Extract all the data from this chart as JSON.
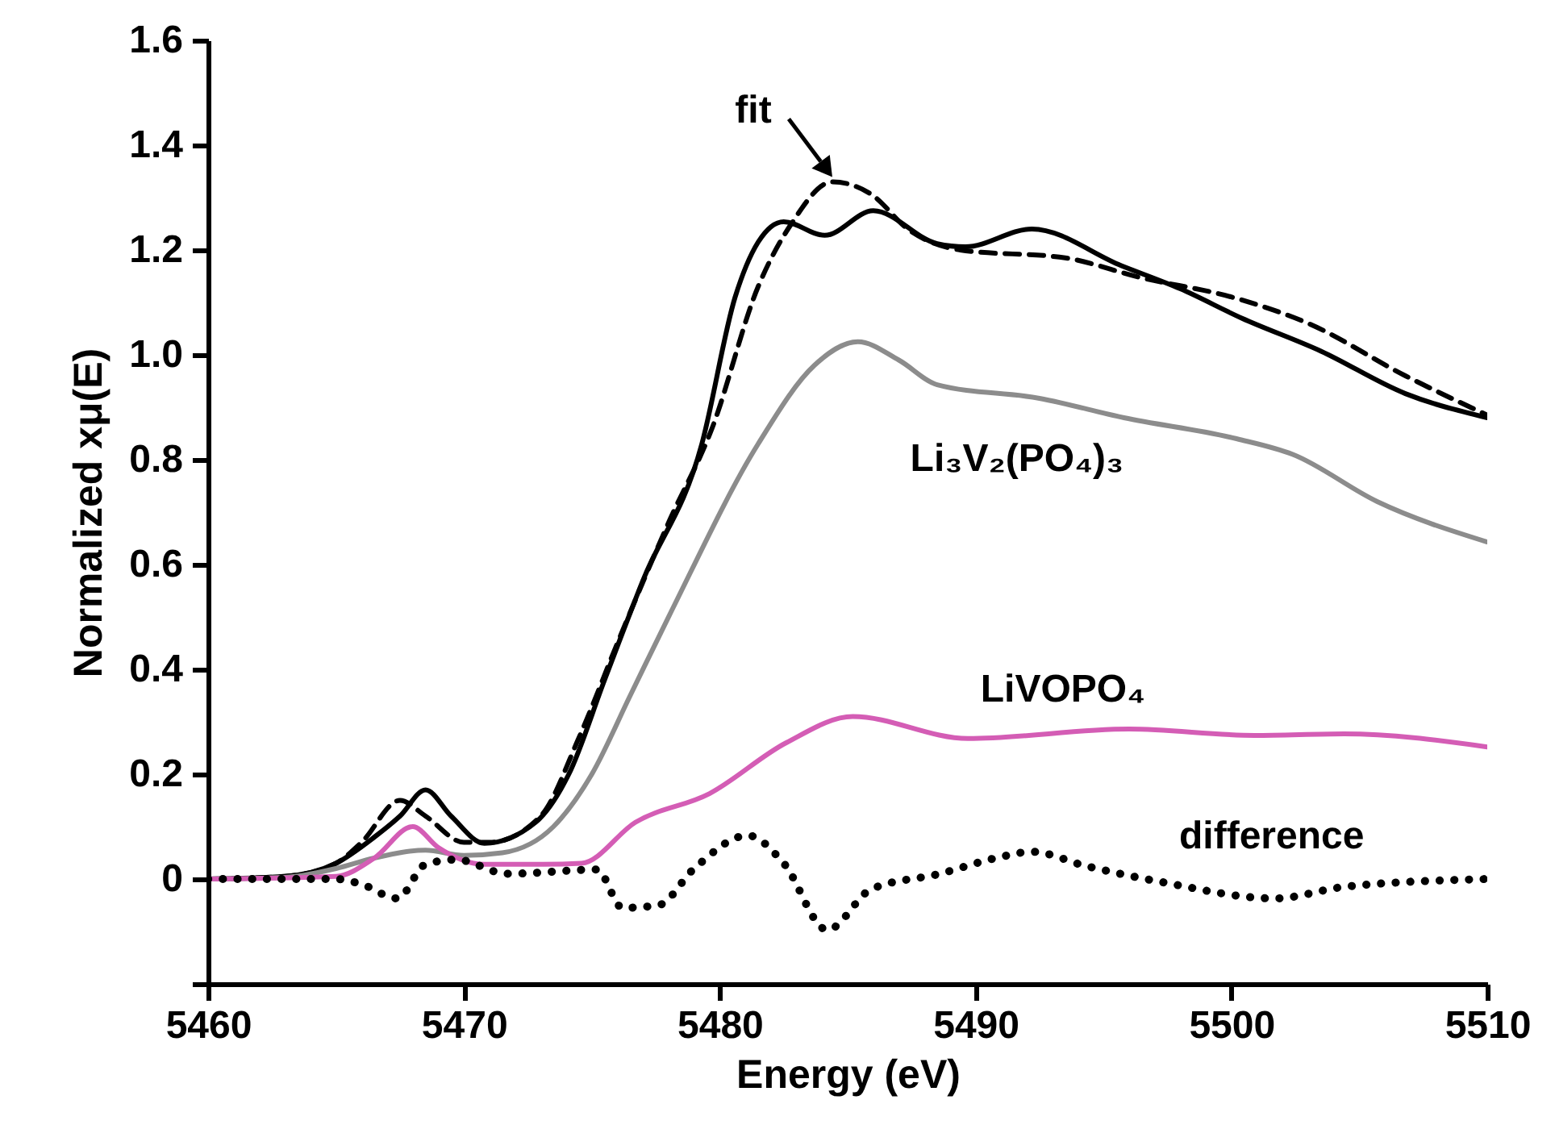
{
  "chart_data": {
    "type": "line",
    "xlabel": "Energy (eV)",
    "ylabel": "Normalized xμ(E)",
    "xlim": [
      5460,
      5510
    ],
    "ylim": [
      -0.2,
      1.6
    ],
    "xticks": [
      5460,
      5470,
      5480,
      5490,
      5500,
      5510
    ],
    "yticks": [
      {
        "value": -0.2,
        "label": null
      },
      0,
      0.2,
      0.4,
      0.6,
      0.8,
      {
        "value": 1.0,
        "label": "1.0"
      },
      1.2,
      1.4,
      1.6
    ],
    "series": [
      {
        "color": "#000000",
        "line_style": "solid",
        "x": [
          5460,
          5463,
          5465,
          5466.5,
          5467.5,
          5468.5,
          5469.5,
          5470.8,
          5472.8,
          5474.1,
          5475.5,
          5477,
          5479.3,
          5480.6,
          5481.5,
          5482.5,
          5484.1,
          5486,
          5488.5,
          5489.6,
          5492.2,
          5495.7,
          5498,
          5500.4,
          5503.5,
          5506.8,
          5510
        ],
        "values": [
          0,
          0.005,
          0.03,
          0.08,
          0.12,
          0.17,
          0.12,
          0.068,
          0.108,
          0.2,
          0.38,
          0.57,
          0.83,
          1.11,
          1.215,
          1.254,
          1.228,
          1.275,
          1.212,
          1.206,
          1.24,
          1.17,
          1.126,
          1.07,
          1.007,
          0.926,
          0.88
        ]
      },
      {
        "name": "fit",
        "color": "#000000",
        "line_style": "dashed",
        "x": [
          5460,
          5463,
          5465,
          5466,
          5467.5,
          5468.5,
          5470,
          5471,
          5473,
          5474.5,
          5476,
          5478,
          5479.7,
          5481.5,
          5482.8,
          5484.4,
          5485.9,
          5487.4,
          5489.4,
          5493.5,
          5496.4,
          5500.1,
          5503,
          5506.8,
          5510
        ],
        "values": [
          0,
          0.005,
          0.03,
          0.07,
          0.15,
          0.12,
          0.07,
          0.07,
          0.12,
          0.27,
          0.45,
          0.68,
          0.86,
          1.13,
          1.25,
          1.33,
          1.307,
          1.238,
          1.2,
          1.185,
          1.148,
          1.109,
          1.06,
          0.96,
          0.885
        ]
      },
      {
        "name": "Li₃V₂(PO₄)₃",
        "color": "#8c8c8c",
        "line_style": "solid",
        "x": [
          5460,
          5463,
          5465,
          5466.5,
          5468.5,
          5470,
          5471.5,
          5473.5,
          5475,
          5476.5,
          5478.1,
          5481.5,
          5483.7,
          5485.4,
          5487,
          5488.5,
          5492.5,
          5495.8,
          5500.2,
          5502.4,
          5505.7,
          5510
        ],
        "values": [
          0,
          0.003,
          0.02,
          0.04,
          0.055,
          0.045,
          0.05,
          0.1,
          0.2,
          0.35,
          0.51,
          0.83,
          0.98,
          1.025,
          0.99,
          0.943,
          0.917,
          0.88,
          0.84,
          0.81,
          0.72,
          0.643
        ]
      },
      {
        "name": "LiVOPO₄",
        "color": "#d45db5",
        "line_style": "solid",
        "x": [
          5460,
          5465,
          5466.5,
          5468,
          5469,
          5470.8,
          5473.1,
          5474.6,
          5476.7,
          5479.6,
          5482.6,
          5485.2,
          5489.7,
          5496,
          5500.9,
          5504.4,
          5510
        ],
        "values": [
          0,
          0.005,
          0.04,
          0.1,
          0.06,
          0.028,
          0.028,
          0.03,
          0.108,
          0.163,
          0.26,
          0.31,
          0.268,
          0.286,
          0.274,
          0.277,
          0.252
        ]
      },
      {
        "name": "difference",
        "color": "#000000",
        "line_style": "dotted",
        "x": [
          5460,
          5465,
          5466,
          5467.4,
          5468.5,
          5469.7,
          5471.7,
          5475.2,
          5476.2,
          5477.6,
          5479,
          5481.1,
          5482.5,
          5484.2,
          5485.9,
          5488.6,
          5490.8,
          5492.2,
          5494.3,
          5497.3,
          5501.7,
          5504.4,
          5510
        ],
        "values": [
          0,
          0,
          -0.01,
          -0.037,
          0.028,
          0.037,
          0.01,
          0.018,
          -0.055,
          -0.05,
          0.02,
          0.083,
          0.03,
          -0.097,
          -0.02,
          0.01,
          0.04,
          0.052,
          0.025,
          -0.006,
          -0.037,
          -0.015,
          0
        ]
      }
    ]
  }
}
